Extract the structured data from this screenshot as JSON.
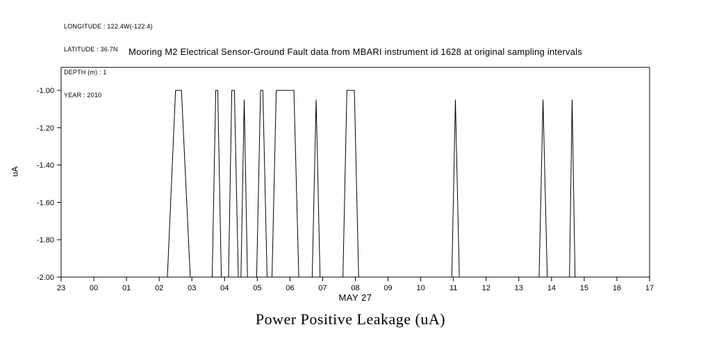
{
  "meta": {
    "longitude": "LONGITUDE : 122.4W(-122.4)",
    "latitude": "LATITUDE : 36.7N",
    "depth": "DEPTH (m) : 1",
    "year": "YEAR : 2010"
  },
  "title": "Mooring M2 Electrical Sensor-Ground Fault data from MBARI instrument id 1628 at original sampling intervals",
  "x_axis_label": "MAY 27",
  "y_axis_label": "uA",
  "bottom_title": "Power Positive Leakage (uA)",
  "chart_data": {
    "type": "line",
    "title": "Mooring M2 Electrical Sensor-Ground Fault data from MBARI instrument id 1628 at original sampling intervals",
    "xlabel": "MAY 27",
    "ylabel": "uA",
    "xlim": [
      -1,
      17
    ],
    "ylim": [
      -2.0,
      -0.877
    ],
    "grid": false,
    "legend": "none",
    "line_color": "#000000",
    "x_tick_values": [
      -1,
      0,
      1,
      2,
      3,
      4,
      5,
      6,
      7,
      8,
      9,
      10,
      11,
      12,
      13,
      14,
      15,
      16,
      17
    ],
    "x_tick_labels": [
      "23",
      "00",
      "01",
      "02",
      "03",
      "04",
      "05",
      "06",
      "07",
      "08",
      "09",
      "10",
      "11",
      "12",
      "13",
      "14",
      "15",
      "16",
      "17"
    ],
    "y_tick_values": [
      -1.0,
      -1.2,
      -1.4,
      -1.6,
      -1.8,
      -2.0
    ],
    "y_tick_labels": [
      "-1.00",
      "-1.20",
      "-1.40",
      "-1.60",
      "-1.80",
      "-2.00"
    ],
    "points": [
      [
        -1.0,
        -2.0
      ],
      [
        2.25,
        -2.0
      ],
      [
        2.5,
        -1.0
      ],
      [
        2.68,
        -1.0
      ],
      [
        2.95,
        -2.0
      ],
      [
        3.62,
        -2.0
      ],
      [
        3.73,
        -1.0
      ],
      [
        3.79,
        -1.0
      ],
      [
        3.9,
        -2.0
      ],
      [
        4.12,
        -2.0
      ],
      [
        4.22,
        -1.0
      ],
      [
        4.3,
        -1.0
      ],
      [
        4.42,
        -2.0
      ],
      [
        4.5,
        -2.0
      ],
      [
        4.6,
        -1.05
      ],
      [
        4.7,
        -2.0
      ],
      [
        4.98,
        -2.0
      ],
      [
        5.1,
        -1.0
      ],
      [
        5.17,
        -1.0
      ],
      [
        5.3,
        -2.0
      ],
      [
        5.45,
        -2.0
      ],
      [
        5.58,
        -1.0
      ],
      [
        6.12,
        -1.0
      ],
      [
        6.27,
        -2.0
      ],
      [
        6.68,
        -2.0
      ],
      [
        6.8,
        -1.05
      ],
      [
        6.92,
        -2.0
      ],
      [
        7.62,
        -2.0
      ],
      [
        7.74,
        -1.0
      ],
      [
        7.97,
        -1.0
      ],
      [
        8.1,
        -2.0
      ],
      [
        10.95,
        -2.0
      ],
      [
        11.06,
        -1.05
      ],
      [
        11.18,
        -2.0
      ],
      [
        13.62,
        -2.0
      ],
      [
        13.74,
        -1.05
      ],
      [
        13.87,
        -2.0
      ],
      [
        14.55,
        -2.0
      ],
      [
        14.63,
        -1.05
      ],
      [
        14.72,
        -2.0
      ],
      [
        17.0,
        -2.0
      ]
    ]
  }
}
